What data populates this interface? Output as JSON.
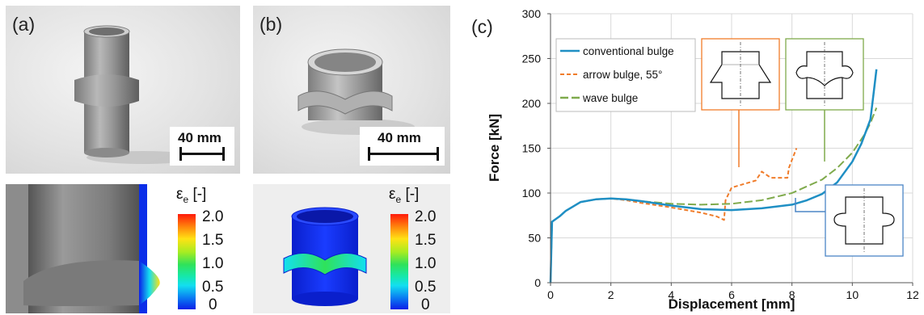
{
  "panels": {
    "a": {
      "label": "(a)",
      "scale_bar": "40 mm"
    },
    "b": {
      "label": "(b)",
      "scale_bar": "40 mm"
    },
    "c": {
      "label": "(c)"
    }
  },
  "colorbar": {
    "symbol": "ε",
    "subscript": "e",
    "unit": " [-]",
    "ticks": [
      "2.0",
      "1.5",
      "1.0",
      "0.5",
      "0"
    ]
  },
  "colors": {
    "conventional": "#1f8fc4",
    "arrow": "#f07c2a",
    "wave": "#7faa4c",
    "inset_conventional": "#4c86c6"
  },
  "chart_data": {
    "type": "line",
    "title": "",
    "xlabel": "Displacement [mm]",
    "ylabel": "Force [kN]",
    "xlim": [
      0,
      12
    ],
    "ylim": [
      0,
      300
    ],
    "xticks": [
      0,
      2,
      4,
      6,
      8,
      10,
      12
    ],
    "yticks": [
      0,
      50,
      100,
      150,
      200,
      250,
      300
    ],
    "grid": true,
    "legend_position": "top-left",
    "series": [
      {
        "name": "conventional bulge",
        "style": "solid",
        "points": [
          [
            0,
            0
          ],
          [
            0.05,
            68
          ],
          [
            0.3,
            74
          ],
          [
            0.5,
            80
          ],
          [
            1,
            90
          ],
          [
            1.5,
            93
          ],
          [
            2,
            94
          ],
          [
            2.5,
            93
          ],
          [
            3,
            91
          ],
          [
            4,
            86
          ],
          [
            5,
            82
          ],
          [
            6,
            81
          ],
          [
            7,
            83
          ],
          [
            8,
            87
          ],
          [
            8.5,
            92
          ],
          [
            9,
            99
          ],
          [
            9.5,
            112
          ],
          [
            10,
            135
          ],
          [
            10.3,
            155
          ],
          [
            10.6,
            182
          ],
          [
            10.7,
            210
          ],
          [
            10.8,
            238
          ]
        ]
      },
      {
        "name": "arrow bulge, 55°",
        "style": "dashed",
        "points": [
          [
            0,
            0
          ],
          [
            0.05,
            68
          ],
          [
            0.3,
            74
          ],
          [
            0.5,
            80
          ],
          [
            1,
            90
          ],
          [
            1.5,
            93
          ],
          [
            2,
            94
          ],
          [
            2.5,
            92
          ],
          [
            3,
            89
          ],
          [
            4,
            84
          ],
          [
            5,
            78
          ],
          [
            5.5,
            74
          ],
          [
            5.75,
            70
          ],
          [
            5.8,
            92
          ],
          [
            6.0,
            106
          ],
          [
            6.5,
            111
          ],
          [
            6.8,
            114
          ],
          [
            7,
            124
          ],
          [
            7.3,
            117
          ],
          [
            7.6,
            117
          ],
          [
            7.85,
            117
          ],
          [
            7.9,
            128
          ],
          [
            8.0,
            137
          ],
          [
            8.15,
            150
          ]
        ]
      },
      {
        "name": "wave bulge",
        "style": "longdash",
        "points": [
          [
            0,
            0
          ],
          [
            0.05,
            68
          ],
          [
            0.3,
            74
          ],
          [
            0.5,
            80
          ],
          [
            1,
            90
          ],
          [
            1.5,
            93
          ],
          [
            2,
            94
          ],
          [
            2.5,
            93
          ],
          [
            3,
            91
          ],
          [
            4,
            88
          ],
          [
            5,
            87
          ],
          [
            6,
            88
          ],
          [
            7,
            92
          ],
          [
            8,
            100
          ],
          [
            9,
            115
          ],
          [
            9.5,
            128
          ],
          [
            10,
            145
          ],
          [
            10.4,
            165
          ],
          [
            10.6,
            178
          ],
          [
            10.8,
            195
          ]
        ]
      }
    ]
  }
}
